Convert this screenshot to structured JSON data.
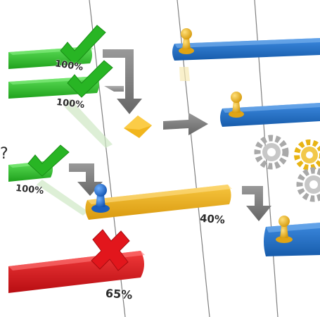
{
  "labels": {
    "bar_green_1": "100%",
    "bar_green_2": "100%",
    "bar_green_3": "100%",
    "bar_orange": "40%",
    "bar_red": "65%",
    "question_mark": "?"
  },
  "colors": {
    "green": "#2ec52b",
    "blue": "#1f6fc9",
    "orange": "#f0b21c",
    "red": "#e0171d",
    "arrow": "#7d7d7d",
    "gear": "#a9a9a9",
    "gear_gold": "#e8b414"
  },
  "icons": [
    "checkmark-icon",
    "cross-icon",
    "pawn-icon",
    "gear-icon",
    "arrow-icon",
    "diamond-milestone-icon"
  ]
}
